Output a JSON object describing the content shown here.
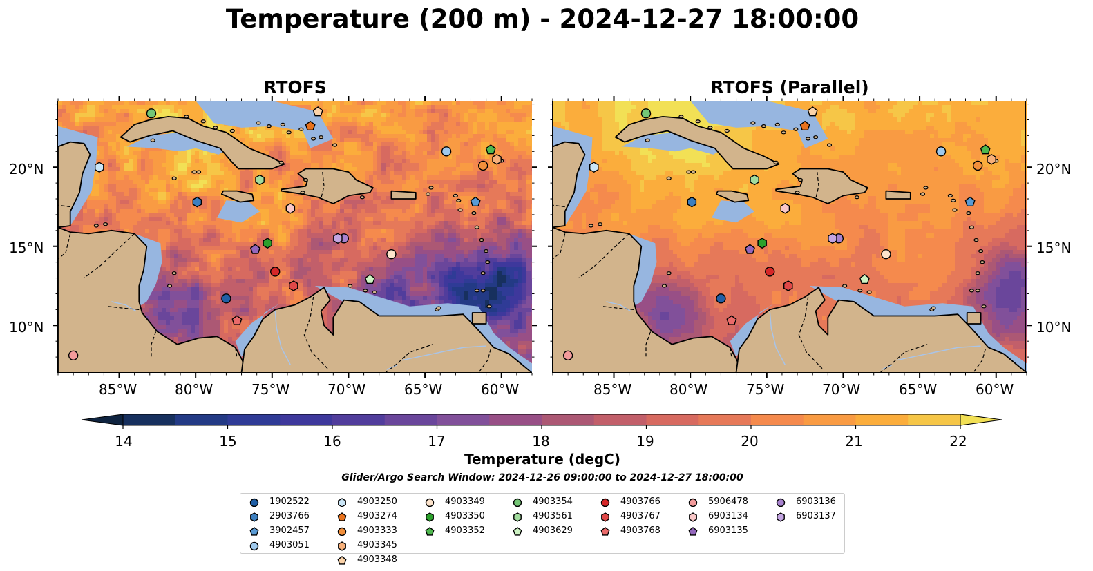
{
  "title": "Temperature (200 m) - 2024-12-27 18:00:00",
  "panels": [
    {
      "title": "RTOFS"
    },
    {
      "title": "RTOFS (Parallel)"
    }
  ],
  "axes": {
    "x_ticks": [
      "85°W",
      "80°W",
      "75°W",
      "70°W",
      "65°W",
      "60°W"
    ],
    "y_ticks": [
      "20°N",
      "15°N",
      "10°N"
    ],
    "x_values": [
      -85,
      -80,
      -75,
      -70,
      -65,
      -60
    ],
    "y_values": [
      20,
      15,
      10
    ],
    "lon_range": [
      -89,
      -58
    ],
    "lat_range": [
      7,
      24.2
    ]
  },
  "colorbar": {
    "label": "Temperature (degC)",
    "ticks": [
      "14",
      "15",
      "16",
      "17",
      "18",
      "19",
      "20",
      "21",
      "22"
    ],
    "range": [
      14,
      22
    ],
    "extend": "both",
    "colors": [
      "#0f2440",
      "#17305e",
      "#233a85",
      "#2f3b96",
      "#3e389c",
      "#513d9c",
      "#6a469b",
      "#81509a",
      "#984f86",
      "#ac5874",
      "#c25f6a",
      "#d76a60",
      "#e67959",
      "#f58a4d",
      "#f99b43",
      "#fbad3c",
      "#f6c647",
      "#f2e055"
    ]
  },
  "search_window": "Glider/Argo Search Window: 2024-12-26 09:00:00 to 2024-12-27 18:00:00",
  "floats": [
    {
      "id": "1902522",
      "color": "#1f5fa6",
      "marker": "circle",
      "lon": -78,
      "lat": 11.7
    },
    {
      "id": "2903766",
      "color": "#3d7fbf",
      "marker": "hexagon",
      "lon": -79.9,
      "lat": 17.8
    },
    {
      "id": "3902457",
      "color": "#5a9bd5",
      "marker": "pentagon",
      "lon": -61.7,
      "lat": 17.8
    },
    {
      "id": "4903051",
      "color": "#9fc9ec",
      "marker": "circle",
      "lon": -63.6,
      "lat": 21
    },
    {
      "id": "4903250",
      "color": "#cbe6f7",
      "marker": "hexagon",
      "lon": -86.3,
      "lat": 20
    },
    {
      "id": "4903274",
      "color": "#e8721c",
      "marker": "pentagon",
      "lon": -72.5,
      "lat": 22.6
    },
    {
      "id": "4903333",
      "color": "#f28f3b",
      "marker": "circle",
      "lon": -61.2,
      "lat": 20.1
    },
    {
      "id": "4903345",
      "color": "#f7b07a",
      "marker": "hexagon",
      "lon": -60.3,
      "lat": 20.5
    },
    {
      "id": "4903348",
      "color": "#fbd3a9",
      "marker": "pentagon",
      "lon": -72,
      "lat": 23.5
    },
    {
      "id": "4903349",
      "color": "#fde4cc",
      "marker": "circle",
      "lon": -67.2,
      "lat": 14.5
    },
    {
      "id": "4903350",
      "color": "#2ca02c",
      "marker": "hexagon",
      "lon": -75.3,
      "lat": 15.2
    },
    {
      "id": "4903352",
      "color": "#4fb84f",
      "marker": "pentagon",
      "lon": -60.7,
      "lat": 21.1
    },
    {
      "id": "4903354",
      "color": "#74c776",
      "marker": "circle",
      "lon": -82.9,
      "lat": 23.4
    },
    {
      "id": "4903561",
      "color": "#a2dc9e",
      "marker": "hexagon",
      "lon": -75.8,
      "lat": 19.2
    },
    {
      "id": "4903629",
      "color": "#cdf3c3",
      "marker": "pentagon",
      "lon": -68.6,
      "lat": 12.9
    },
    {
      "id": "4903766",
      "color": "#d62728",
      "marker": "circle",
      "lon": -74.8,
      "lat": 13.4
    },
    {
      "id": "4903767",
      "color": "#e04848",
      "marker": "hexagon",
      "lon": -73.6,
      "lat": 12.5
    },
    {
      "id": "4903768",
      "color": "#ea6a6a",
      "marker": "pentagon",
      "lon": -77.3,
      "lat": 10.3
    },
    {
      "id": "5906478",
      "color": "#f39b9b",
      "marker": "circle",
      "lon": -88,
      "lat": 8.1
    },
    {
      "id": "6903134",
      "color": "#fac8c8",
      "marker": "hexagon",
      "lon": -73.8,
      "lat": 17.4
    },
    {
      "id": "6903135",
      "color": "#9467bd",
      "marker": "pentagon",
      "lon": -76.1,
      "lat": 14.8
    },
    {
      "id": "6903136",
      "color": "#a883cf",
      "marker": "circle",
      "lon": -70.3,
      "lat": 15.5
    },
    {
      "id": "6903137",
      "color": "#c4a5e2",
      "marker": "hexagon",
      "lon": -70.7,
      "lat": 15.5
    }
  ],
  "map_colors": {
    "land": "#d2b48c",
    "shelf": "#97b6e0",
    "deep": "#051f33",
    "coast": "#000000",
    "border": "#000000",
    "river": "#a9c4e8"
  }
}
